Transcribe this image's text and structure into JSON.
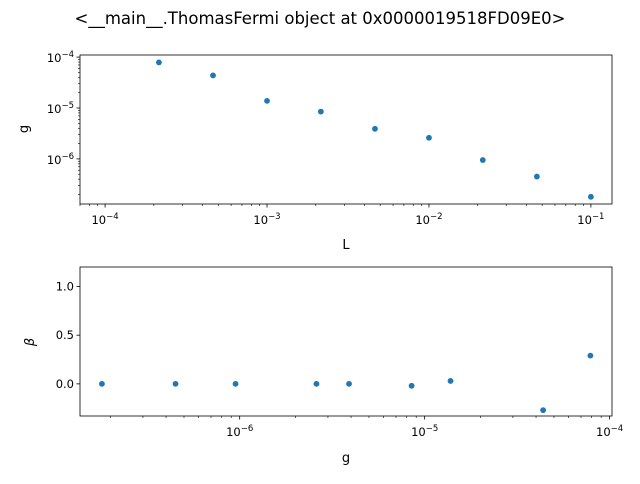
{
  "figure": {
    "title": "<__main__.ThomasFermi object at 0x0000019518FD09E0>"
  },
  "colors": {
    "marker": "#1f77b4",
    "axis": "#000000"
  },
  "chart_data": [
    {
      "type": "scatter",
      "xlabel": "L",
      "ylabel": "g",
      "xscale": "log",
      "yscale": "log",
      "xlim": [
        7e-05,
        0.135
      ],
      "ylim": [
        1.3e-07,
        0.00011
      ],
      "xticks": [
        {
          "value": 0.0001,
          "base": "10",
          "exp": "−4"
        },
        {
          "value": 0.001,
          "base": "10",
          "exp": "−3"
        },
        {
          "value": 0.01,
          "base": "10",
          "exp": "−2"
        },
        {
          "value": 0.1,
          "base": "10",
          "exp": "−1"
        }
      ],
      "yticks": [
        {
          "value": 1e-06,
          "base": "10",
          "exp": "−6"
        },
        {
          "value": 1e-05,
          "base": "10",
          "exp": "−5"
        },
        {
          "value": 0.0001,
          "base": "10",
          "exp": "−4"
        }
      ],
      "grid": false,
      "series": [
        {
          "x": [
            0.000215,
            0.000464,
            0.001,
            0.00215,
            0.00464,
            0.01,
            0.0215,
            0.0464,
            0.1
          ],
          "y": [
            7.87e-05,
            4.37e-05,
            1.38e-05,
            8.5e-06,
            3.9e-06,
            2.6e-06,
            9.5e-07,
            4.5e-07,
            1.8e-07
          ]
        }
      ]
    },
    {
      "type": "scatter",
      "xlabel": "g",
      "ylabel": "β",
      "xscale": "log",
      "yscale": "linear",
      "xlim": [
        1.37e-07,
        0.000103
      ],
      "ylim": [
        -0.33,
        1.2
      ],
      "xticks": [
        {
          "value": 1e-06,
          "base": "10",
          "exp": "−6"
        },
        {
          "value": 1e-05,
          "base": "10",
          "exp": "−5"
        },
        {
          "value": 0.0001,
          "base": "10",
          "exp": "−4"
        }
      ],
      "yticks": [
        {
          "value": 0.0,
          "label": "0.0"
        },
        {
          "value": 0.5,
          "label": "0.5"
        },
        {
          "value": 1.0,
          "label": "1.0"
        }
      ],
      "grid": false,
      "series": [
        {
          "x": [
            1.8e-07,
            4.5e-07,
            9.5e-07,
            2.6e-06,
            3.9e-06,
            8.5e-06,
            1.38e-05,
            4.37e-05,
            7.87e-05
          ],
          "y": [
            0.0,
            0.0,
            0.0,
            0.0,
            0.0,
            -0.02,
            0.03,
            -0.27,
            0.29
          ]
        }
      ]
    }
  ]
}
